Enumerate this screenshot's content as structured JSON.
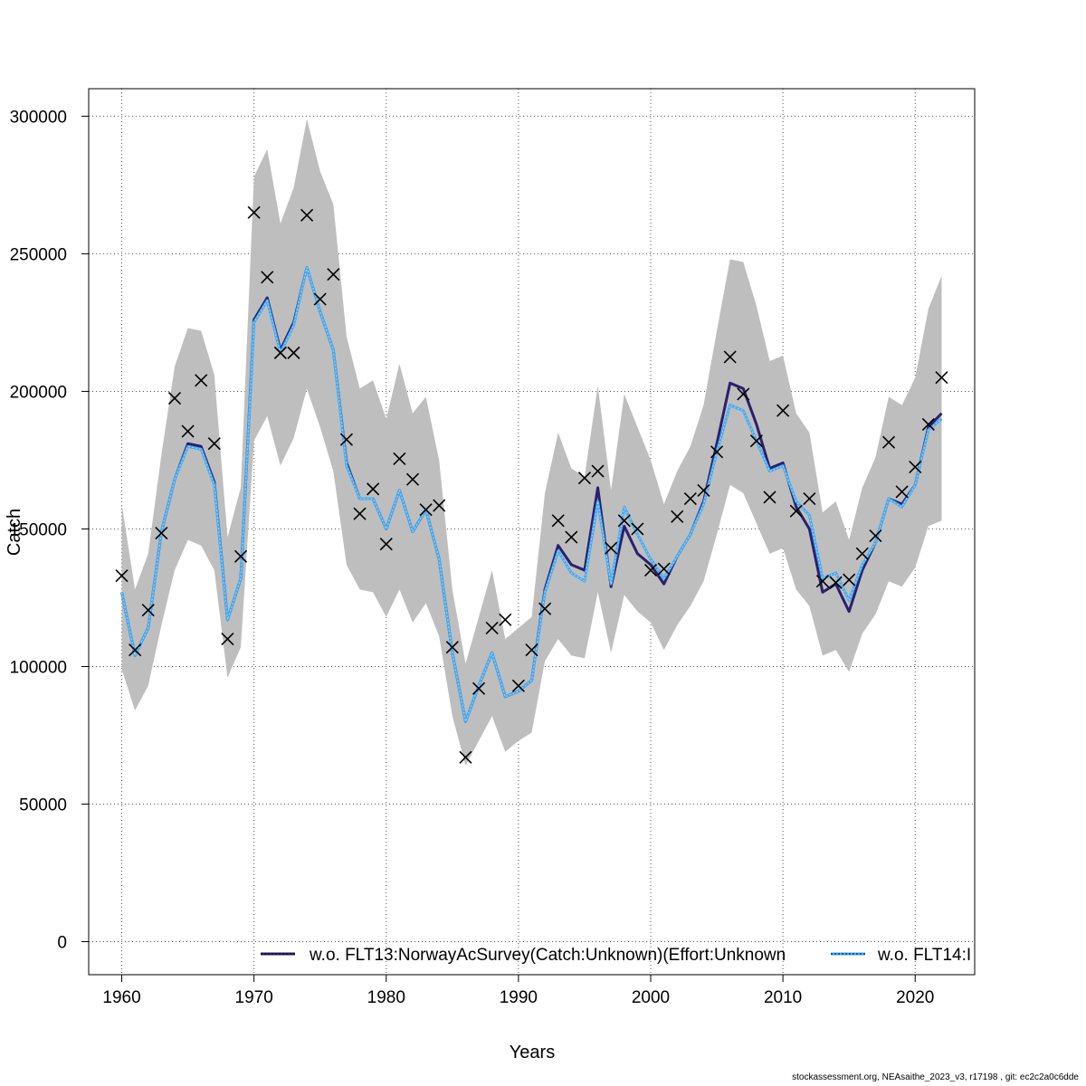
{
  "footer": "stockassessment.org, NEAsaithe_2023_v3, r17198 , git: ec2c2a0c6dde",
  "chart_data": {
    "type": "line",
    "title": "",
    "xlabel": "Years",
    "ylabel": "Catch",
    "xlim": [
      1957.5,
      2024.5
    ],
    "ylim": [
      -12000,
      310000
    ],
    "xticks": [
      1960,
      1970,
      1980,
      1990,
      2000,
      2010,
      2020
    ],
    "yticks": [
      0,
      50000,
      100000,
      150000,
      200000,
      250000,
      300000
    ],
    "grid": true,
    "legend_position": "bottom",
    "colors": {
      "band": "#bebebe",
      "series1": "#2b1f6e",
      "series2": "#3fa9f5",
      "series2_inner": "#9ad4f0",
      "observed": "#000000"
    },
    "x": [
      1960,
      1961,
      1962,
      1963,
      1964,
      1965,
      1966,
      1967,
      1968,
      1969,
      1970,
      1971,
      1972,
      1973,
      1974,
      1975,
      1976,
      1977,
      1978,
      1979,
      1980,
      1981,
      1982,
      1983,
      1984,
      1985,
      1986,
      1987,
      1988,
      1989,
      1990,
      1991,
      1992,
      1993,
      1994,
      1995,
      1996,
      1997,
      1998,
      1999,
      2000,
      2001,
      2002,
      2003,
      2004,
      2005,
      2006,
      2007,
      2008,
      2009,
      2010,
      2011,
      2012,
      2013,
      2014,
      2015,
      2016,
      2017,
      2018,
      2019,
      2020,
      2021,
      2022
    ],
    "band_lower": [
      99000,
      84000,
      93000,
      115000,
      135000,
      146000,
      144000,
      135000,
      96000,
      107000,
      182000,
      191000,
      173000,
      183000,
      201000,
      187000,
      171000,
      137000,
      128000,
      127000,
      118000,
      128000,
      116000,
      123000,
      111000,
      82000,
      64000,
      73000,
      82000,
      69000,
      73000,
      76000,
      102000,
      110000,
      104000,
      103000,
      127000,
      105000,
      126000,
      120000,
      116000,
      106000,
      115000,
      122000,
      131000,
      148000,
      166000,
      163000,
      152000,
      141000,
      143000,
      128000,
      122000,
      104000,
      106000,
      98000,
      112000,
      119000,
      131000,
      129000,
      136000,
      151000,
      153000
    ],
    "band_upper": [
      159000,
      128000,
      141000,
      177000,
      209000,
      223000,
      222000,
      206000,
      147000,
      165000,
      278000,
      288000,
      261000,
      274000,
      299000,
      280000,
      268000,
      220000,
      201000,
      204000,
      190000,
      210000,
      192000,
      198000,
      175000,
      128000,
      101000,
      118000,
      135000,
      110000,
      114000,
      118000,
      163000,
      185000,
      172000,
      169000,
      202000,
      164000,
      199000,
      187000,
      175000,
      159000,
      171000,
      180000,
      195000,
      222000,
      248000,
      247000,
      231000,
      211000,
      213000,
      192000,
      185000,
      156000,
      160000,
      146000,
      165000,
      176000,
      198000,
      195000,
      205000,
      230000,
      242000
    ],
    "series": [
      {
        "name": "w.o. FLT13:NorwayAcSurvey(Catch:Unknown)(Effort:Unknown",
        "style": "solid",
        "values": [
          127000,
          104000,
          114000,
          149000,
          168000,
          181000,
          180000,
          167000,
          117000,
          132000,
          226000,
          234000,
          215000,
          225000,
          245000,
          229000,
          215000,
          174000,
          161000,
          161000,
          150000,
          164000,
          149000,
          157000,
          139000,
          105000,
          80000,
          93000,
          105000,
          89000,
          91000,
          95000,
          128000,
          144000,
          137000,
          135000,
          165000,
          129000,
          151000,
          141000,
          137000,
          130000,
          140000,
          148000,
          160000,
          181000,
          203000,
          201000,
          188000,
          172000,
          174000,
          158000,
          150000,
          127000,
          130000,
          120000,
          135000,
          145000,
          161000,
          159000,
          166000,
          187000,
          192000
        ]
      },
      {
        "name": "w.o. FLT14:I",
        "style": "dotted",
        "values": [
          127000,
          104000,
          114000,
          149000,
          168000,
          180000,
          179000,
          166000,
          117000,
          132000,
          225000,
          233000,
          214000,
          224000,
          245000,
          229000,
          215000,
          173000,
          161000,
          161000,
          150000,
          164000,
          149000,
          157000,
          139000,
          105000,
          80000,
          93000,
          105000,
          89000,
          91000,
          95000,
          127000,
          142000,
          134000,
          131000,
          160000,
          130000,
          158000,
          148000,
          139000,
          132000,
          140000,
          148000,
          159000,
          178000,
          195000,
          193000,
          182000,
          171000,
          173000,
          160000,
          155000,
          132000,
          134000,
          124000,
          137000,
          145000,
          161000,
          158000,
          166000,
          186000,
          190000
        ]
      }
    ],
    "observed_label": "",
    "observed": [
      133000,
      106000,
      120500,
      148500,
      197500,
      185500,
      204000,
      181000,
      110000,
      140000,
      265000,
      241500,
      214000,
      214000,
      264000,
      233500,
      242500,
      182500,
      155500,
      164500,
      144500,
      175500,
      168000,
      157000,
      158500,
      107000,
      67000,
      92000,
      114000,
      117000,
      93000,
      106000,
      121000,
      153000,
      147000,
      168500,
      171000,
      143000,
      153000,
      150000,
      135000,
      135500,
      154500,
      161000,
      164000,
      178000,
      212500,
      199000,
      182000,
      161500,
      193000,
      156500,
      161000,
      131000,
      130500,
      131500,
      141000,
      147500,
      181500,
      163500,
      172500,
      188000,
      205000
    ],
    "legend": [
      {
        "label": "w.o. FLT13:NorwayAcSurvey(Catch:Unknown)(Effort:Unknown",
        "style": "solid"
      },
      {
        "label": "w.o. FLT14:I",
        "style": "dotted"
      }
    ]
  }
}
